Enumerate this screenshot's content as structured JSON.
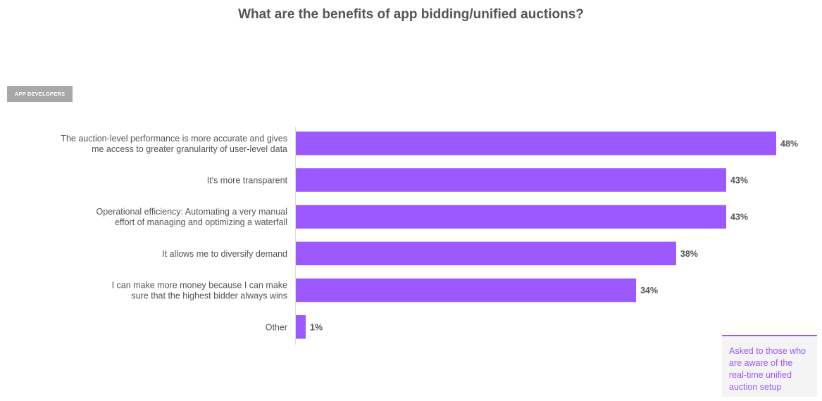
{
  "title": "What are the benefits of app bidding/unified auctions?",
  "segment_label": "APP DEVELOPERS",
  "note": "Asked to those who are aware of the real-time unified auction setup",
  "colors": {
    "bar": "#9b59ff",
    "text": "#555555",
    "note": "#9b59ff",
    "badge": "#a8a8a8"
  },
  "chart_data": {
    "type": "bar",
    "orientation": "horizontal",
    "title": "What are the benefits of app bidding/unified auctions?",
    "categories": [
      [
        "The auction-level performance is more accurate and gives",
        "me access to greater granularity of user-level data"
      ],
      [
        "It's more transparent"
      ],
      [
        "Operational efficiency: Automating a very manual",
        "effort of managing and optimizing a waterfall"
      ],
      [
        "It allows me to diversify demand"
      ],
      [
        "I can make more money because I can make",
        "sure that the highest bidder always wins"
      ],
      [
        "Other"
      ]
    ],
    "values": [
      48,
      43,
      43,
      38,
      34,
      1
    ],
    "value_labels": [
      "48%",
      "43%",
      "43%",
      "38%",
      "34%",
      "1%"
    ],
    "unit": "%",
    "xlim": [
      0,
      48
    ],
    "grid": false,
    "legend": "none"
  }
}
